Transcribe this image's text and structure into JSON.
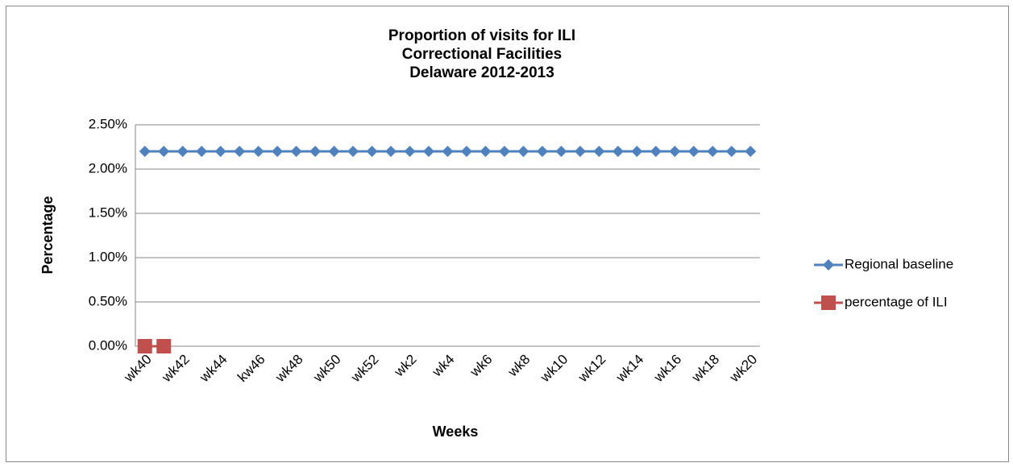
{
  "chart_data": {
    "type": "line",
    "title": [
      "Proportion of visits for ILI",
      "Correctional Facilities",
      "Delaware 2012-2013"
    ],
    "x_label": "Weeks",
    "y_label": "Percentage",
    "categories": [
      "wk40",
      null,
      "wk42",
      null,
      "wk44",
      null,
      "kw46",
      null,
      "wk48",
      null,
      "wk50",
      null,
      "wk52",
      null,
      "wk2",
      null,
      "wk4",
      null,
      "wk6",
      null,
      "wk8",
      null,
      "wk10",
      null,
      "wk12",
      null,
      "wk14",
      null,
      "wk16",
      null,
      "wk18",
      null,
      "wk20"
    ],
    "series": [
      {
        "name": "Regional baseline",
        "color": "#4f81bd",
        "marker": "diamond",
        "values": [
          2.2,
          2.2,
          2.2,
          2.2,
          2.2,
          2.2,
          2.2,
          2.2,
          2.2,
          2.2,
          2.2,
          2.2,
          2.2,
          2.2,
          2.2,
          2.2,
          2.2,
          2.2,
          2.2,
          2.2,
          2.2,
          2.2,
          2.2,
          2.2,
          2.2,
          2.2,
          2.2,
          2.2,
          2.2,
          2.2,
          2.2,
          2.2,
          2.2
        ]
      },
      {
        "name": "percentage of ILI",
        "color": "#c0504d",
        "marker": "square",
        "values": [
          0,
          0,
          null,
          null,
          null,
          null,
          null,
          null,
          null,
          null,
          null,
          null,
          null,
          null,
          null,
          null,
          null,
          null,
          null,
          null,
          null,
          null,
          null,
          null,
          null,
          null,
          null,
          null,
          null,
          null,
          null,
          null,
          null
        ]
      }
    ],
    "ylim": [
      0,
      2.5
    ],
    "yticks": [
      {
        "value": 0,
        "label": "0.00%"
      },
      {
        "value": 0.5,
        "label": "0.50%"
      },
      {
        "value": 1,
        "label": "1.00%"
      },
      {
        "value": 1.5,
        "label": "1.50%"
      },
      {
        "value": 2,
        "label": "2.00%"
      },
      {
        "value": 2.5,
        "label": "2.50%"
      }
    ],
    "grid": true,
    "legend": "right"
  }
}
